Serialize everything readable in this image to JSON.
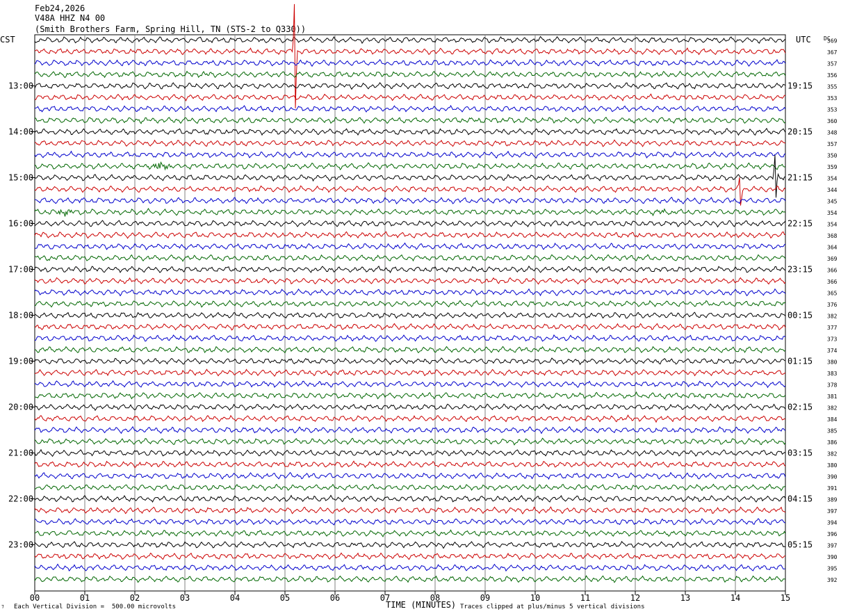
{
  "header": {
    "line1": "Feb24,2026",
    "line2": "V48A HHZ N4 00",
    "line3": "(Smith Brothers Farm, Spring Hill, TN (STS-2 to Q330))"
  },
  "footer": {
    "scale_note": "Each Vertical Division =  500.00 microvolts",
    "x_title": "TIME (MINUTES)",
    "clip_note": "Traces clipped at plus/minus 5 vertical divisions"
  },
  "colors": {
    "trace_cycle": [
      "#000000",
      "#cc0000",
      "#0000cc",
      "#006600"
    ],
    "grid": "#808080"
  },
  "chart_data": {
    "type": "line",
    "title": "",
    "left_axis_label": "CST",
    "right_axis_label": "UTC",
    "dc_label": "DC",
    "xlabel": "TIME (MINUTES)",
    "xlim": [
      0,
      15
    ],
    "x_ticks": [
      "00",
      "01",
      "02",
      "03",
      "04",
      "05",
      "06",
      "07",
      "08",
      "09",
      "10",
      "11",
      "12",
      "13",
      "14",
      "15"
    ],
    "trace_minutes": 15,
    "traces_per_hour": 4,
    "cst_hour_labels": [
      "13:00",
      "14:00",
      "15:00",
      "16:00",
      "17:00",
      "18:00",
      "19:00",
      "20:00",
      "21:00",
      "22:00",
      "23:00"
    ],
    "utc_hour_labels": [
      "19:15",
      "20:15",
      "21:15",
      "22:15",
      "23:15",
      "00:15",
      "01:15",
      "02:15",
      "03:15",
      "04:15",
      "05:15"
    ],
    "dc_values": [
      369,
      367,
      357,
      356,
      355,
      353,
      353,
      360,
      348,
      357,
      350,
      359,
      354,
      344,
      345,
      354,
      354,
      368,
      364,
      369,
      366,
      366,
      365,
      376,
      382,
      377,
      373,
      374,
      380,
      383,
      378,
      381,
      382,
      384,
      385,
      386,
      382,
      380,
      390,
      391,
      389,
      397,
      394,
      396,
      397,
      390,
      395,
      392
    ],
    "events": [
      {
        "trace": 1,
        "minute": 5.2,
        "type": "spike",
        "amplitude": 6.0
      },
      {
        "trace": 11,
        "minute": 2.5,
        "type": "burst",
        "amplitude": 1.0
      },
      {
        "trace": 12,
        "minute": 14.8,
        "type": "spike",
        "amplitude": 2.5
      },
      {
        "trace": 13,
        "minute": 14.1,
        "type": "spike",
        "amplitude": 1.6
      },
      {
        "trace": 15,
        "minute": 0.6,
        "type": "burst",
        "amplitude": 0.7
      },
      {
        "trace": 15,
        "minute": 12.5,
        "type": "burst",
        "amplitude": 0.5
      }
    ]
  }
}
